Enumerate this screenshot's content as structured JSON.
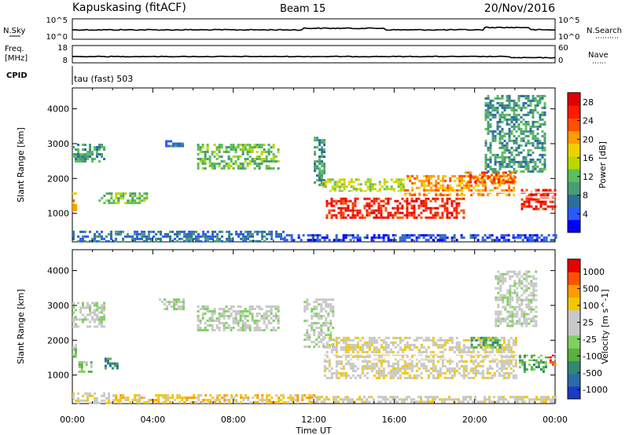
{
  "header": {
    "station": "Kapuskasing (fitACF)",
    "beam": "Beam 15",
    "date": "20/Nov/2016"
  },
  "sky_panel": {
    "left_label": "N.Sky",
    "right_label": "N.Search",
    "tick_top": "10^5",
    "tick_bottom": "10^0"
  },
  "freq_panel": {
    "left_label_1": "Freq.",
    "left_label_2": "[MHz]",
    "right_label": "Nave",
    "left_ticks": [
      "18",
      "8"
    ],
    "right_ticks": [
      "60",
      "0"
    ]
  },
  "cpid": {
    "label": "CPID",
    "value": "tau (fast) 503"
  },
  "chart_data": [
    {
      "type": "heatmap",
      "name": "power",
      "xlabel": "Time UT",
      "ylabel": "Slant Range [km]",
      "x_ticks": [
        "00:00",
        "04:00",
        "08:00",
        "12:00",
        "16:00",
        "20:00",
        "00:00"
      ],
      "x_range_hours": [
        0,
        24
      ],
      "ylim": [
        180,
        4600
      ],
      "y_ticks": [
        1000,
        2000,
        3000,
        4000
      ],
      "colorbar": {
        "label": "Power [dB]",
        "ticks": [
          "4",
          "8",
          "12",
          "16",
          "20",
          "24",
          "28"
        ],
        "colors": [
          "#0000ff",
          "#2a5aff",
          "#2e6e9c",
          "#4a9c78",
          "#5cc05c",
          "#b8d800",
          "#f0d000",
          "#ff9c00",
          "#ff5000",
          "#ff1a00",
          "#e00000"
        ]
      },
      "regions": [
        {
          "t0": 0.0,
          "t1": 0.2,
          "r0": 1100,
          "r1": 1600,
          "level": 7
        },
        {
          "t0": 0.0,
          "t1": 1.6,
          "r0": 2500,
          "r1": 3000,
          "level": 3
        },
        {
          "t0": 1.3,
          "t1": 3.7,
          "r0": 1300,
          "r1": 1600,
          "level": 4
        },
        {
          "t0": 4.5,
          "t1": 5.5,
          "r0": 2900,
          "r1": 3100,
          "level": 2
        },
        {
          "t0": 6.2,
          "t1": 10.2,
          "r0": 2300,
          "r1": 3000,
          "level": 4
        },
        {
          "t0": 12.0,
          "t1": 12.5,
          "r0": 1800,
          "r1": 3200,
          "level": 3
        },
        {
          "t0": 12.3,
          "t1": 16.5,
          "r0": 1600,
          "r1": 2000,
          "level": 5
        },
        {
          "t0": 12.6,
          "t1": 19.5,
          "r0": 900,
          "r1": 1450,
          "level": 9
        },
        {
          "t0": 16.5,
          "t1": 22.0,
          "r0": 1500,
          "r1": 2100,
          "level": 7
        },
        {
          "t0": 19.5,
          "t1": 22.0,
          "r0": 1900,
          "r1": 2200,
          "level": 8
        },
        {
          "t0": 22.3,
          "t1": 24.0,
          "r0": 1100,
          "r1": 1700,
          "level": 9
        },
        {
          "t0": 20.5,
          "t1": 23.5,
          "r0": 2200,
          "r1": 4400,
          "level": 3
        },
        {
          "t0": 0.0,
          "t1": 10.5,
          "r0": 200,
          "r1": 500,
          "level": 2
        },
        {
          "t0": 10.5,
          "t1": 24.0,
          "r0": 200,
          "r1": 400,
          "level": 1
        }
      ]
    },
    {
      "type": "heatmap",
      "name": "velocity",
      "xlabel": "Time UT",
      "ylabel": "Slant Range [km]",
      "x_ticks": [
        "00:00",
        "04:00",
        "08:00",
        "12:00",
        "16:00",
        "20:00",
        "00:00"
      ],
      "x_range_hours": [
        0,
        24
      ],
      "ylim": [
        180,
        4600
      ],
      "y_ticks": [
        1000,
        2000,
        3000,
        4000
      ],
      "colorbar": {
        "label": "Velocity [m s^-1]",
        "ticks": [
          "1000",
          "500",
          "100",
          "25",
          "-25",
          "-100",
          "-500",
          "-1000"
        ],
        "colors": [
          "#1a3cc8",
          "#2c6aa8",
          "#2e8a70",
          "#5ab040",
          "#80d060",
          "#c8c8c8",
          "#c8c8c8",
          "#f0c800",
          "#ff9c00",
          "#ff5000",
          "#e80000"
        ]
      },
      "regions": [
        {
          "t0": 0.0,
          "t1": 1.6,
          "r0": 2400,
          "r1": 3100,
          "level": 5
        },
        {
          "t0": 0.0,
          "t1": 0.3,
          "r0": 1500,
          "r1": 1900,
          "level": 4
        },
        {
          "t0": 0.3,
          "t1": 1.0,
          "r0": 1100,
          "r1": 1400,
          "level": 4
        },
        {
          "t0": 1.6,
          "t1": 2.2,
          "r0": 1200,
          "r1": 1500,
          "level": 2
        },
        {
          "t0": 4.3,
          "t1": 5.5,
          "r0": 2900,
          "r1": 3200,
          "level": 5
        },
        {
          "t0": 6.2,
          "t1": 10.2,
          "r0": 2300,
          "r1": 3000,
          "level": 5
        },
        {
          "t0": 11.5,
          "t1": 13.0,
          "r0": 1800,
          "r1": 3200,
          "level": 5
        },
        {
          "t0": 12.5,
          "t1": 22.0,
          "r0": 900,
          "r1": 2100,
          "level": 6
        },
        {
          "t0": 19.8,
          "t1": 21.3,
          "r0": 1800,
          "r1": 2100,
          "level": 3
        },
        {
          "t0": 22.2,
          "t1": 23.6,
          "r0": 1100,
          "r1": 1600,
          "level": 3
        },
        {
          "t0": 23.6,
          "t1": 24.0,
          "r0": 1300,
          "r1": 1600,
          "level": 9
        },
        {
          "t0": 21.0,
          "t1": 23.0,
          "r0": 2400,
          "r1": 4000,
          "level": 5
        },
        {
          "t0": 2.0,
          "t1": 12.0,
          "r0": 200,
          "r1": 450,
          "level": 7
        },
        {
          "t0": 0.0,
          "t1": 2.0,
          "r0": 200,
          "r1": 500,
          "level": 6
        },
        {
          "t0": 12.0,
          "t1": 24.0,
          "r0": 200,
          "r1": 400,
          "level": 6
        }
      ]
    }
  ]
}
